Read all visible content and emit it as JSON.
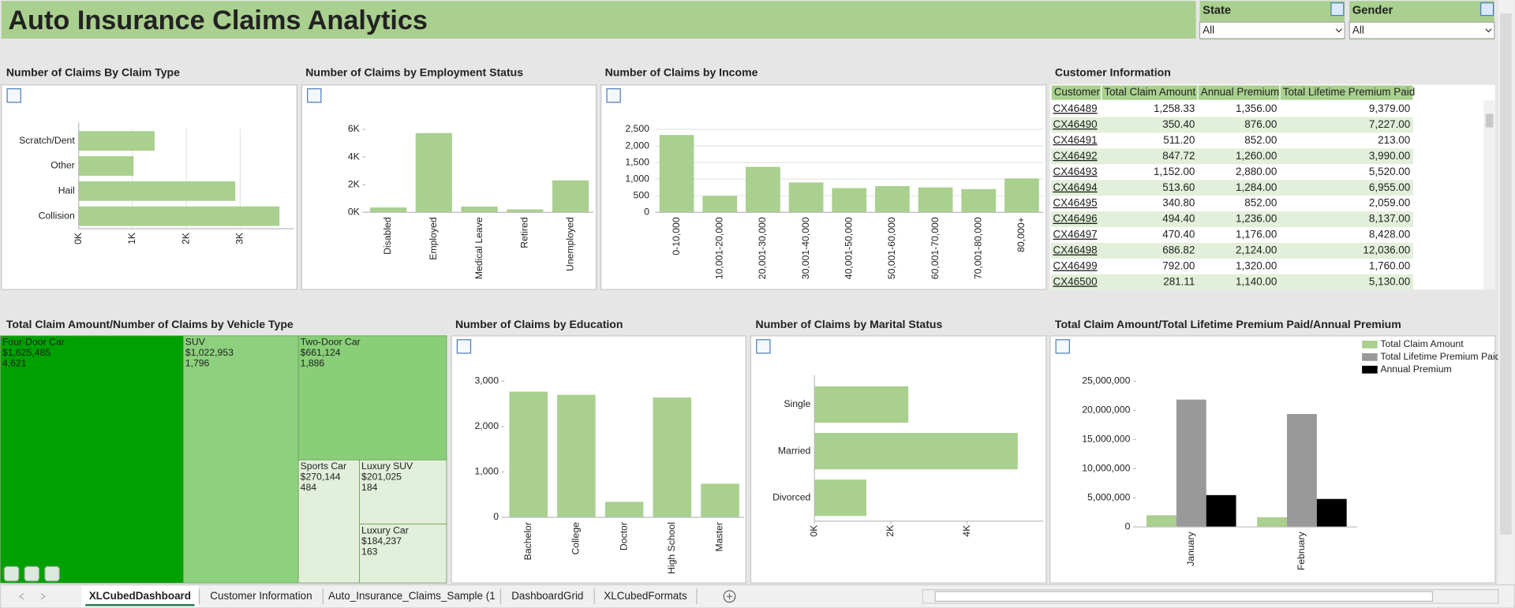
{
  "header": {
    "title": "Auto Insurance Claims Analytics"
  },
  "filters": [
    {
      "label": "State",
      "value": "All"
    },
    {
      "label": "Gender",
      "value": "All"
    }
  ],
  "chart_data": [
    {
      "type": "bar",
      "horizontal": true,
      "title": "Number of Claims By Claim Type",
      "categories": [
        "Collision",
        "Hail",
        "Other",
        "Scratch/Dent"
      ],
      "values": [
        3730,
        2910,
        1020,
        1410
      ],
      "color": "#a9d08e",
      "xlim": [
        0,
        4000
      ],
      "xticks": [
        {
          "value": 0,
          "label": "0K"
        },
        {
          "value": 1000,
          "label": "1K"
        },
        {
          "value": 2000,
          "label": "2K"
        },
        {
          "value": 3000,
          "label": "3K"
        }
      ],
      "grid": true
    },
    {
      "type": "bar",
      "horizontal": false,
      "title": "Number of Claims by Employment Status",
      "categories": [
        "Disabled",
        "Employed",
        "Medical Leave",
        "Retired",
        "Unemployed"
      ],
      "values": [
        350,
        5730,
        420,
        210,
        2310
      ],
      "color": "#a9d08e",
      "ylim": [
        0,
        6000
      ],
      "yticks": [
        {
          "value": 0,
          "label": "0K"
        },
        {
          "value": 2000,
          "label": "2K"
        },
        {
          "value": 4000,
          "label": "4K"
        },
        {
          "value": 6000,
          "label": "6K"
        }
      ],
      "grid": false
    },
    {
      "type": "bar",
      "horizontal": false,
      "title": "Number of Claims by Income",
      "categories": [
        "0-10,000",
        "10,001-20,000",
        "20,001-30,000",
        "30,001-40,000",
        "40,001-50,000",
        "50,001-60,000",
        "60,001-70,000",
        "70,001-80,000",
        "80,000+"
      ],
      "values": [
        2330,
        490,
        1370,
        900,
        730,
        790,
        750,
        700,
        1020
      ],
      "color": "#a9d08e",
      "ylim": [
        0,
        2500
      ],
      "yticks": [
        0,
        500,
        {
          "value": 1000,
          "label": "1,000"
        },
        {
          "value": 1500,
          "label": "1,500"
        },
        {
          "value": 2000,
          "label": "2,000"
        },
        {
          "value": 2500,
          "label": "2,500"
        }
      ],
      "grid": true
    },
    {
      "type": "treemap",
      "title": "Total Claim Amount/Number of Claims by Vehicle Type",
      "categories": [
        "Four-Door Car",
        "SUV",
        "Two-Door Car",
        "Sports Car",
        "Luxury SUV",
        "Luxury Car"
      ],
      "values": [
        1625485,
        1022953,
        661124,
        270144,
        201025,
        184237
      ],
      "value_labels": [
        "$1,625,485",
        "$1,022,953",
        "$661,124",
        "$270,144",
        "$201,025",
        "$184,237"
      ],
      "counts": [
        4621,
        1796,
        1886,
        484,
        184,
        163
      ],
      "count_labels": [
        "4,621",
        "1,796",
        "1,886",
        "484",
        "184",
        "163"
      ],
      "colors": [
        "#00a000",
        "#8dd17e",
        "#88cf78",
        "#e2efda",
        "#e2efda",
        "#e2efda"
      ]
    },
    {
      "type": "bar",
      "horizontal": false,
      "title": "Number of Claims by Education",
      "categories": [
        "Bachelor",
        "College",
        "Doctor",
        "High School",
        "Master"
      ],
      "values": [
        2770,
        2700,
        340,
        2640,
        740
      ],
      "color": "#a9d08e",
      "ylim": [
        0,
        3000
      ],
      "yticks": [
        0,
        {
          "value": 1000,
          "label": "1,000"
        },
        {
          "value": 2000,
          "label": "2,000"
        },
        {
          "value": 3000,
          "label": "3,000"
        }
      ],
      "grid": false
    },
    {
      "type": "bar",
      "horizontal": true,
      "title": "Number of Claims by Marital Status",
      "categories": [
        "Divorced",
        "Married",
        "Single"
      ],
      "values": [
        1360,
        5330,
        2460
      ],
      "color": "#a9d08e",
      "xlim": [
        0,
        6000
      ],
      "xticks": [
        {
          "value": 0,
          "label": "0K"
        },
        {
          "value": 2000,
          "label": "2K"
        },
        {
          "value": 4000,
          "label": "4K"
        }
      ],
      "grid": false
    },
    {
      "type": "grouped-bar",
      "title": "Total Claim Amount/Total Lifetime Premium Paid/Annual Premium",
      "categories": [
        "January",
        "February"
      ],
      "series": [
        {
          "name": "Total Claim Amount",
          "color": "#a9d08e",
          "values": [
            2000000,
            1660000
          ]
        },
        {
          "name": "Total Lifetime Premium Paid",
          "color": "#999999",
          "values": [
            21850000,
            19370000
          ]
        },
        {
          "name": "Annual Premium",
          "color": "#000000",
          "values": [
            5460000,
            4800000
          ]
        }
      ],
      "ylim": [
        0,
        25000000
      ],
      "yticks": [
        0,
        {
          "value": 5000000,
          "label": "5,000,000"
        },
        {
          "value": 10000000,
          "label": "10,000,000"
        },
        {
          "value": 15000000,
          "label": "15,000,000"
        },
        {
          "value": 20000000,
          "label": "20,000,000"
        },
        {
          "value": 25000000,
          "label": "25,000,000"
        }
      ],
      "legend": "top-right",
      "grid": false
    }
  ],
  "table": {
    "title": "Customer Information",
    "columns": [
      "Customer",
      "Total Claim Amount",
      "Annual Premium",
      "Total Lifetime Premium Paid"
    ],
    "rows": [
      [
        "CX46489",
        "1,258.33",
        "1,356.00",
        "9,379.00"
      ],
      [
        "CX46490",
        "350.40",
        "876.00",
        "7,227.00"
      ],
      [
        "CX46491",
        "511.20",
        "852.00",
        "213.00"
      ],
      [
        "CX46492",
        "847.72",
        "1,260.00",
        "3,990.00"
      ],
      [
        "CX46493",
        "1,152.00",
        "2,880.00",
        "5,520.00"
      ],
      [
        "CX46494",
        "513.60",
        "1,284.00",
        "6,955.00"
      ],
      [
        "CX46495",
        "340.80",
        "852.00",
        "2,059.00"
      ],
      [
        "CX46496",
        "494.40",
        "1,236.00",
        "8,137.00"
      ],
      [
        "CX46497",
        "470.40",
        "1,176.00",
        "8,428.00"
      ],
      [
        "CX46498",
        "686.82",
        "2,124.00",
        "12,036.00"
      ],
      [
        "CX46499",
        "792.00",
        "1,320.00",
        "1,760.00"
      ],
      [
        "CX46500",
        "281.11",
        "1,140.00",
        "5,130.00"
      ]
    ]
  },
  "tabs": [
    "XLCubedDashboard",
    "Customer Information",
    "Auto_Insurance_Claims_Sample (1",
    "DashboardGrid",
    "XLCubedFormats"
  ]
}
